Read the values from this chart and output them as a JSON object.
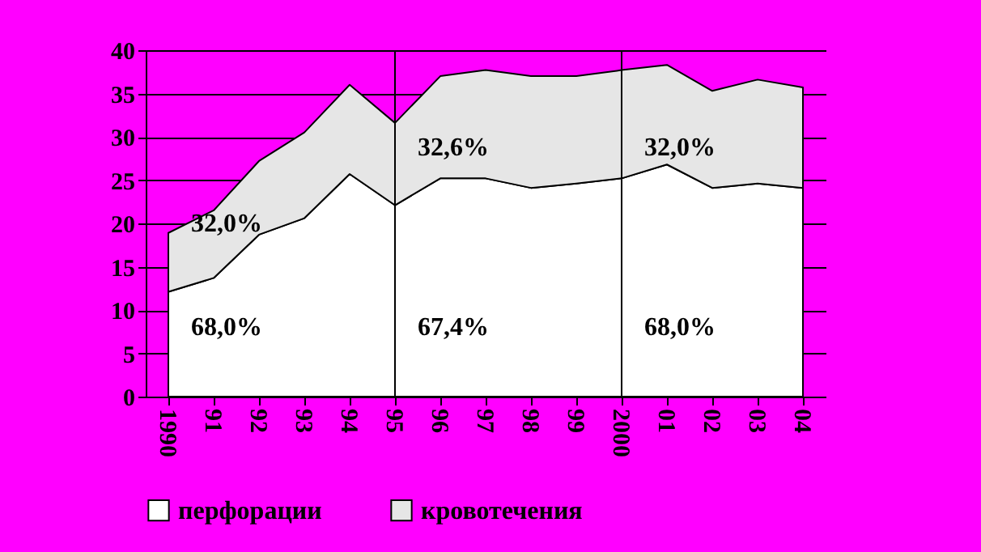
{
  "chart_data": {
    "type": "area",
    "stacked": true,
    "categories": [
      "1990",
      "91",
      "92",
      "93",
      "94",
      "95",
      "96",
      "97",
      "98",
      "99",
      "2000",
      "01",
      "02",
      "03",
      "04"
    ],
    "series": [
      {
        "name": "перфорации",
        "color": "#ffffff",
        "values": [
          12.1,
          13.7,
          18.7,
          20.6,
          25.7,
          22.1,
          25.2,
          25.2,
          24.1,
          24.6,
          25.2,
          26.8,
          24.1,
          24.6,
          24.1
        ]
      },
      {
        "name": "кровотечения",
        "color": "#e6e6e6",
        "values": [
          6.8,
          7.8,
          8.5,
          9.9,
          10.3,
          9.5,
          11.8,
          12.5,
          12.9,
          12.4,
          12.5,
          11.5,
          11.2,
          12.0,
          11.6
        ]
      }
    ],
    "ylim": [
      0,
      40
    ],
    "yticks": [
      0,
      5,
      10,
      15,
      20,
      25,
      30,
      35,
      40
    ],
    "grid": "y",
    "legend": "bottom",
    "ref_lines": [
      {
        "axis": "x",
        "value": "95",
        "label": null
      },
      {
        "axis": "x",
        "value": "2000",
        "label": null
      }
    ],
    "annotations": [
      "68,0%",
      "32,0%",
      "67,4%",
      "32,6%",
      "68,0%",
      "32,0%"
    ]
  }
}
